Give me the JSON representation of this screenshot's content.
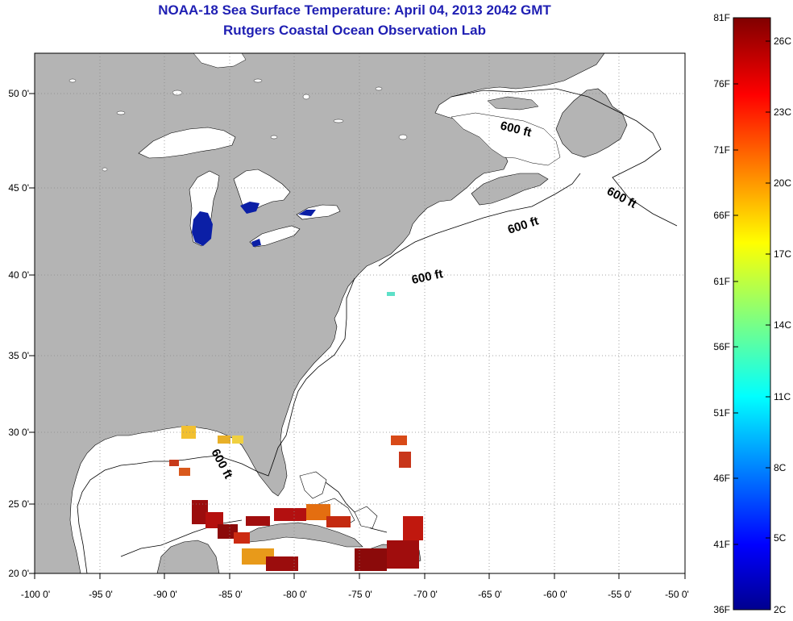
{
  "title": "NOAA-18 Sea Surface Temperature:  April 04, 2013 2042 GMT",
  "subtitle": "Rutgers Coastal Ocean Observation Lab",
  "axes": {
    "x_ticks": [
      "-100 0'",
      "-95 0'",
      "-90 0'",
      "-85 0'",
      "-80 0'",
      "-75 0'",
      "-70 0'",
      "-65 0'",
      "-60 0'",
      "-55 0'",
      "-50 0'"
    ],
    "y_ticks": [
      "50 0'",
      "45 0'",
      "40 0'",
      "35 0'",
      "30 0'",
      "25 0'",
      "20 0'"
    ],
    "lon_range": [
      -100,
      -50
    ],
    "lat_range": [
      20,
      52.5
    ]
  },
  "depth_contour_label": "600 ft",
  "colorbar": {
    "fahrenheit_labels": [
      "81F",
      "76F",
      "71F",
      "66F",
      "61F",
      "56F",
      "51F",
      "46F",
      "41F",
      "36F"
    ],
    "celsius_labels": [
      "26C",
      "23C",
      "20C",
      "17C",
      "14C",
      "11C",
      "8C",
      "5C",
      "2C"
    ],
    "colormap": "jet",
    "range_f": [
      36,
      81
    ],
    "range_c": [
      2,
      27.2
    ]
  },
  "colors": {
    "land": "#b4b4b4",
    "ocean": "#ffffff",
    "title": "#1f1fb3",
    "lake_cold": "#0b1fa6",
    "warm_sst": "#9b0d0d"
  }
}
